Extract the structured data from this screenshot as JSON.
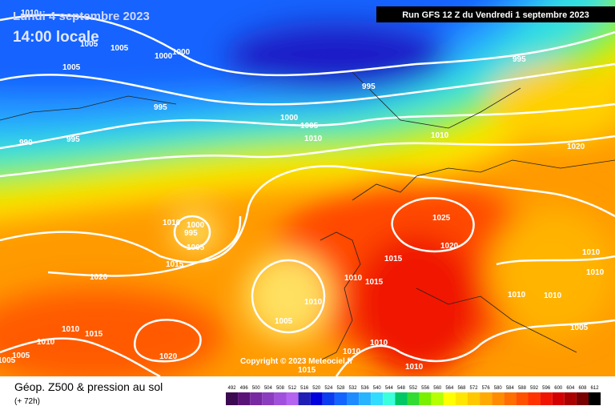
{
  "header": {
    "date": "Lundi 4 septembre 2023",
    "time": "14:00 locale",
    "run": "Run GFS 12 Z du Vendredi 1 septembre 2023"
  },
  "isobar_labels": [
    "1010",
    "1005",
    "1005",
    "1000",
    "1000",
    "995",
    "1005",
    "995",
    "995",
    "1000",
    "1005",
    "1010",
    "990",
    "995",
    "1010",
    "1020",
    "1010",
    "1000",
    "995",
    "1005",
    "1025",
    "1020",
    "1015",
    "1015",
    "1020",
    "1010",
    "1015",
    "1010",
    "1010",
    "1010",
    "1010",
    "1010",
    "1005",
    "1010",
    "1015",
    "1005",
    "1010",
    "1010",
    "1010",
    "1020",
    "1005",
    "1010",
    "1015",
    "1005"
  ],
  "copyright": "Copyright © 2023 Meteociel.fr",
  "footer": {
    "title": "Géop. Z500 & pression au sol",
    "lead": "(+ 72h)"
  },
  "scale": {
    "values": [
      492,
      496,
      500,
      504,
      508,
      512,
      516,
      520,
      524,
      528,
      532,
      536,
      540,
      544,
      548,
      552,
      556,
      560,
      564,
      568,
      572,
      576,
      580,
      584,
      588,
      592,
      596,
      600,
      604,
      608,
      612
    ],
    "colors": [
      "#3c0a50",
      "#5a1478",
      "#7828a0",
      "#8c3cbe",
      "#a050dc",
      "#b464f0",
      "#1e1eb4",
      "#0000dc",
      "#0a3cf0",
      "#1464ff",
      "#1e8cff",
      "#28b4ff",
      "#32dcff",
      "#3cffdc",
      "#00c864",
      "#32dc32",
      "#78f000",
      "#b4ff00",
      "#ffff00",
      "#ffe600",
      "#ffc800",
      "#ffaa00",
      "#ff8c00",
      "#ff6e00",
      "#ff5000",
      "#ff3200",
      "#f01400",
      "#d20000",
      "#aa0000",
      "#780000",
      "#000000"
    ]
  }
}
